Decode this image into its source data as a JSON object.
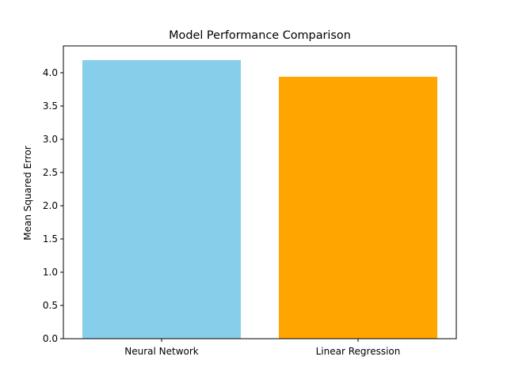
{
  "chart_data": {
    "type": "bar",
    "title": "Model Performance Comparison",
    "xlabel": "",
    "ylabel": "Mean Squared Error",
    "categories": [
      "Neural Network",
      "Linear Regression"
    ],
    "values": [
      4.19,
      3.94
    ],
    "colors": [
      "#87ceeb",
      "#ffa500"
    ],
    "ylim": [
      0,
      4.19
    ],
    "yticks": [
      0.0,
      0.5,
      1.0,
      1.5,
      2.0,
      2.5,
      3.0,
      3.5,
      4.0
    ],
    "ytick_labels": [
      "0.0",
      "0.5",
      "1.0",
      "1.5",
      "2.0",
      "2.5",
      "3.0",
      "3.5",
      "4.0"
    ],
    "grid": false,
    "legend": "none"
  }
}
